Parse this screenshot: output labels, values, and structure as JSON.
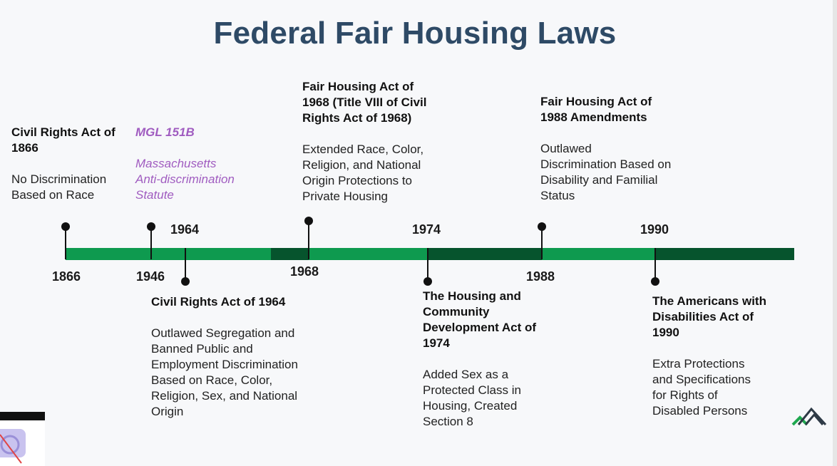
{
  "title": "Federal Fair Housing Laws",
  "colors": {
    "bright_green": "#0e9a4f",
    "dark_green": "#06542d",
    "title": "#2e4a66",
    "purple": "#a05cc0"
  },
  "years": {
    "y1866": "1866",
    "y1946": "1946",
    "y1964": "1964",
    "y1968": "1968",
    "y1974": "1974",
    "y1988": "1988",
    "y1990": "1990"
  },
  "events": {
    "civil_rights_1866": {
      "head": [
        "Civil Rights Act of",
        "1866"
      ],
      "body": [
        "No Discrimination",
        "Based on Race"
      ]
    },
    "mgl_151b": {
      "head": [
        "MGL 151B"
      ],
      "body": [
        "Massachusetts",
        "Anti-discrimination",
        "Statute"
      ]
    },
    "fha_1968": {
      "head": [
        "Fair Housing Act of",
        "1968 (Title VIII of Civil",
        "Rights Act of 1968)"
      ],
      "body": [
        "Extended Race, Color,",
        "Religion, and National",
        "Origin Protections to",
        "Private Housing"
      ]
    },
    "fha_1988": {
      "head": [
        "Fair Housing Act of",
        "1988 Amendments"
      ],
      "body": [
        "Outlawed",
        "Discrimination Based on",
        "Disability and Familial",
        "Status"
      ]
    },
    "civil_rights_1964": {
      "head": [
        "Civil Rights Act of 1964"
      ],
      "body": [
        "Outlawed Segregation and",
        "Banned Public and",
        "Employment Discrimination",
        "Based on Race, Color,",
        "Religion, Sex, and National",
        "Origin"
      ]
    },
    "hcda_1974": {
      "head": [
        "The Housing and",
        "Community",
        "Development Act of",
        "1974"
      ],
      "body": [
        "Added Sex as a",
        "Protected Class in",
        "Housing, Created",
        "Section 8"
      ]
    },
    "ada_1990": {
      "head": [
        "The Americans with",
        "Disabilities Act of",
        "1990"
      ],
      "body": [
        "Extra Protections",
        "and Specifications",
        "for Rights of",
        "Disabled Persons"
      ]
    }
  }
}
